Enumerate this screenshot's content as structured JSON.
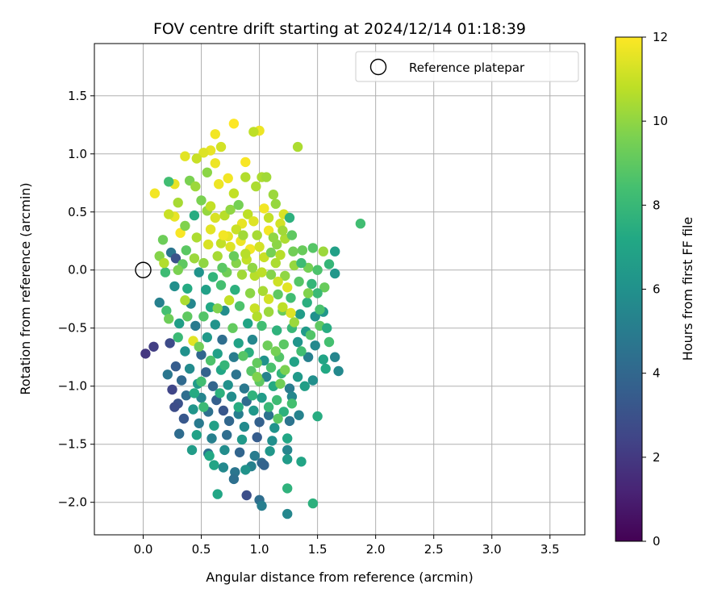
{
  "chart_data": {
    "type": "scatter",
    "title": "FOV centre drift starting at 2024/12/14 01:18:39",
    "xlabel": "Angular distance from reference (arcmin)",
    "ylabel": "Rotation from reference (arcmin)",
    "xlim": [
      -0.42,
      3.8
    ],
    "ylim": [
      -2.28,
      1.95
    ],
    "xticks": [
      0.0,
      0.5,
      1.0,
      1.5,
      2.0,
      2.5,
      3.0,
      3.5
    ],
    "xtick_labels": [
      "0.0",
      "0.5",
      "1.0",
      "1.5",
      "2.0",
      "2.5",
      "3.0",
      "3.5"
    ],
    "yticks": [
      1.5,
      1.0,
      0.5,
      0.0,
      -0.5,
      -1.0,
      -1.5,
      -2.0
    ],
    "ytick_labels": [
      "1.5",
      "1.0",
      "0.5",
      "0.0",
      "−0.5",
      "−1.0",
      "−1.5",
      "−2.0"
    ],
    "grid": true,
    "legend": {
      "placement": "top-right",
      "entries": [
        "Reference platepar"
      ]
    },
    "colorbar": {
      "label": "Hours from first FF file",
      "colormap": "viridis",
      "range": [
        0,
        12
      ],
      "ticks": [
        0,
        2,
        4,
        6,
        8,
        10,
        12
      ],
      "tick_labels": [
        "0",
        "2",
        "4",
        "6",
        "8",
        "10",
        "12"
      ]
    },
    "reference_point": {
      "name": "Reference platepar",
      "x": 0.0,
      "y": 0.0
    },
    "marker_colors": {
      "reference_edge": "#000000",
      "grid": "#b0b0b0"
    },
    "points": [
      [
        0.78,
        1.26,
        12.0
      ],
      [
        0.62,
        1.17,
        11.8
      ],
      [
        1.0,
        1.2,
        11.7
      ],
      [
        0.95,
        1.19,
        10.8
      ],
      [
        1.33,
        1.06,
        10.5
      ],
      [
        0.67,
        1.06,
        11.2
      ],
      [
        0.58,
        1.03,
        11.6
      ],
      [
        0.52,
        1.01,
        11.4
      ],
      [
        0.36,
        0.98,
        11.5
      ],
      [
        0.46,
        0.96,
        11.0
      ],
      [
        0.88,
        0.93,
        11.9
      ],
      [
        0.62,
        0.92,
        11.7
      ],
      [
        1.02,
        0.8,
        10.5
      ],
      [
        0.55,
        0.84,
        9.9
      ],
      [
        0.1,
        0.66,
        11.8
      ],
      [
        0.27,
        0.74,
        11.6
      ],
      [
        0.73,
        0.79,
        11.8
      ],
      [
        0.4,
        0.77,
        9.6
      ],
      [
        0.22,
        0.76,
        8.3
      ],
      [
        0.88,
        0.8,
        10.6
      ],
      [
        1.06,
        0.8,
        10.3
      ],
      [
        0.65,
        0.74,
        11.7
      ],
      [
        0.78,
        0.66,
        10.9
      ],
      [
        0.97,
        0.72,
        10.5
      ],
      [
        1.12,
        0.65,
        10.2
      ],
      [
        0.5,
        0.6,
        9.6
      ],
      [
        0.55,
        0.51,
        10.1
      ],
      [
        0.27,
        0.46,
        11.6
      ],
      [
        0.32,
        0.32,
        11.9
      ],
      [
        0.17,
        0.26,
        9.3
      ],
      [
        0.44,
        0.47,
        7.4
      ],
      [
        0.7,
        0.47,
        10.7
      ],
      [
        0.85,
        0.4,
        11.6
      ],
      [
        1.04,
        0.53,
        11.8
      ],
      [
        1.21,
        0.48,
        11.3
      ],
      [
        1.18,
        0.4,
        11.2
      ],
      [
        1.26,
        0.45,
        7.6
      ],
      [
        1.87,
        0.4,
        8.3
      ],
      [
        1.65,
        0.16,
        6.8
      ],
      [
        1.46,
        0.19,
        8.8
      ],
      [
        1.37,
        0.17,
        9.2
      ],
      [
        1.55,
        0.16,
        10.2
      ],
      [
        1.6,
        0.05,
        7.9
      ],
      [
        1.65,
        -0.03,
        6.3
      ],
      [
        1.08,
        0.34,
        11.8
      ],
      [
        0.67,
        0.23,
        10.9
      ],
      [
        0.73,
        0.29,
        11.6
      ],
      [
        0.84,
        0.25,
        11.7
      ],
      [
        0.92,
        0.18,
        11.8
      ],
      [
        0.98,
        0.3,
        10.4
      ],
      [
        1.15,
        0.22,
        9.9
      ],
      [
        1.22,
        0.27,
        10.5
      ],
      [
        1.29,
        0.16,
        9.4
      ],
      [
        0.37,
        0.17,
        8.9
      ],
      [
        0.24,
        0.15,
        4.7
      ],
      [
        0.28,
        0.1,
        3.0
      ],
      [
        0.52,
        0.06,
        10.0
      ],
      [
        0.64,
        0.12,
        10.4
      ],
      [
        0.8,
        0.06,
        9.8
      ],
      [
        0.89,
        0.09,
        10.9
      ],
      [
        1.04,
        0.11,
        11.0
      ],
      [
        1.14,
        0.06,
        10.5
      ],
      [
        1.3,
        0.04,
        10.1
      ],
      [
        1.42,
        0.02,
        9.5
      ],
      [
        1.5,
        0.0,
        8.6
      ],
      [
        0.34,
        0.05,
        9.0
      ],
      [
        0.3,
        0.0,
        9.6
      ],
      [
        0.19,
        -0.02,
        8.2
      ],
      [
        0.48,
        -0.02,
        6.1
      ],
      [
        0.6,
        -0.06,
        7.8
      ],
      [
        0.72,
        -0.02,
        9.4
      ],
      [
        0.85,
        -0.04,
        10.3
      ],
      [
        0.96,
        -0.05,
        10.7
      ],
      [
        1.1,
        -0.04,
        9.8
      ],
      [
        1.22,
        -0.05,
        10.0
      ],
      [
        1.34,
        -0.1,
        8.8
      ],
      [
        1.45,
        -0.12,
        7.9
      ],
      [
        1.56,
        -0.15,
        9.2
      ],
      [
        1.5,
        -0.2,
        8.1
      ],
      [
        0.27,
        -0.14,
        5.9
      ],
      [
        0.38,
        -0.16,
        7.3
      ],
      [
        0.54,
        -0.17,
        6.8
      ],
      [
        0.67,
        -0.13,
        8.4
      ],
      [
        0.79,
        -0.17,
        7.6
      ],
      [
        0.92,
        -0.2,
        9.9
      ],
      [
        1.03,
        -0.18,
        10.4
      ],
      [
        1.16,
        -0.21,
        9.0
      ],
      [
        1.27,
        -0.24,
        8.3
      ],
      [
        1.41,
        -0.28,
        7.5
      ],
      [
        0.14,
        -0.28,
        5.2
      ],
      [
        0.2,
        -0.35,
        8.4
      ],
      [
        0.41,
        -0.29,
        5.5
      ],
      [
        0.58,
        -0.32,
        7.2
      ],
      [
        0.7,
        -0.35,
        5.8
      ],
      [
        0.83,
        -0.31,
        8.6
      ],
      [
        0.96,
        -0.33,
        11.0
      ],
      [
        1.08,
        -0.36,
        10.2
      ],
      [
        1.2,
        -0.35,
        9.2
      ],
      [
        1.35,
        -0.38,
        6.6
      ],
      [
        1.48,
        -0.4,
        6.0
      ],
      [
        1.55,
        -0.36,
        6.3
      ],
      [
        0.22,
        -0.42,
        9.3
      ],
      [
        0.31,
        -0.46,
        6.7
      ],
      [
        0.45,
        -0.48,
        4.9
      ],
      [
        0.62,
        -0.47,
        6.1
      ],
      [
        0.77,
        -0.5,
        9.1
      ],
      [
        0.9,
        -0.46,
        7.0
      ],
      [
        1.02,
        -0.48,
        8.3
      ],
      [
        1.15,
        -0.52,
        7.7
      ],
      [
        1.28,
        -0.5,
        8.0
      ],
      [
        1.4,
        -0.53,
        6.5
      ],
      [
        1.52,
        -0.48,
        9.0
      ],
      [
        1.58,
        -0.5,
        7.4
      ],
      [
        0.3,
        -0.58,
        8.1
      ],
      [
        0.43,
        -0.61,
        11.5
      ],
      [
        0.55,
        -0.58,
        6.4
      ],
      [
        0.68,
        -0.6,
        4.3
      ],
      [
        0.82,
        -0.63,
        6.9
      ],
      [
        0.94,
        -0.6,
        5.5
      ],
      [
        1.07,
        -0.65,
        9.3
      ],
      [
        1.21,
        -0.64,
        8.9
      ],
      [
        1.33,
        -0.62,
        6.2
      ],
      [
        1.48,
        -0.65,
        5.6
      ],
      [
        1.6,
        -0.62,
        8.4
      ],
      [
        0.23,
        -0.63,
        2.7
      ],
      [
        0.36,
        -0.7,
        6.0
      ],
      [
        0.5,
        -0.73,
        4.0
      ],
      [
        0.64,
        -0.72,
        6.8
      ],
      [
        0.78,
        -0.75,
        5.0
      ],
      [
        0.91,
        -0.71,
        7.5
      ],
      [
        1.04,
        -0.78,
        6.1
      ],
      [
        1.17,
        -0.75,
        8.7
      ],
      [
        1.3,
        -0.79,
        6.9
      ],
      [
        1.42,
        -0.75,
        5.2
      ],
      [
        1.55,
        -0.77,
        7.0
      ],
      [
        1.65,
        -0.75,
        5.4
      ],
      [
        0.02,
        -0.72,
        1.9
      ],
      [
        0.09,
        -0.66,
        2.2
      ],
      [
        0.28,
        -0.83,
        3.5
      ],
      [
        0.4,
        -0.85,
        5.7
      ],
      [
        0.54,
        -0.88,
        3.8
      ],
      [
        0.67,
        -0.86,
        7.1
      ],
      [
        0.8,
        -0.9,
        4.6
      ],
      [
        0.93,
        -0.87,
        8.8
      ],
      [
        1.06,
        -0.92,
        5.3
      ],
      [
        1.19,
        -0.89,
        7.8
      ],
      [
        1.33,
        -0.92,
        6.4
      ],
      [
        1.46,
        -0.95,
        5.9
      ],
      [
        1.57,
        -0.85,
        7.2
      ],
      [
        1.68,
        -0.87,
        5.6
      ],
      [
        0.21,
        -0.9,
        4.7
      ],
      [
        0.33,
        -0.95,
        4.1
      ],
      [
        0.47,
        -0.98,
        6.5
      ],
      [
        0.6,
        -1.0,
        3.9
      ],
      [
        0.73,
        -0.99,
        6.0
      ],
      [
        0.87,
        -1.02,
        4.8
      ],
      [
        1.0,
        -0.96,
        9.0
      ],
      [
        1.12,
        -1.0,
        7.3
      ],
      [
        1.26,
        -1.02,
        5.0
      ],
      [
        1.39,
        -1.0,
        6.7
      ],
      [
        0.25,
        -1.03,
        2.5
      ],
      [
        0.37,
        -1.08,
        4.3
      ],
      [
        0.5,
        -1.1,
        5.4
      ],
      [
        0.63,
        -1.12,
        3.6
      ],
      [
        0.76,
        -1.09,
        5.8
      ],
      [
        0.89,
        -1.13,
        4.2
      ],
      [
        1.02,
        -1.1,
        6.6
      ],
      [
        1.15,
        -1.12,
        8.2
      ],
      [
        1.28,
        -1.09,
        5.5
      ],
      [
        0.3,
        -1.15,
        3.0
      ],
      [
        0.43,
        -1.2,
        6.2
      ],
      [
        0.56,
        -1.22,
        4.4
      ],
      [
        0.69,
        -1.21,
        3.2
      ],
      [
        0.82,
        -1.24,
        5.1
      ],
      [
        0.95,
        -1.21,
        6.3
      ],
      [
        1.08,
        -1.25,
        4.5
      ],
      [
        1.21,
        -1.22,
        7.6
      ],
      [
        1.34,
        -1.25,
        5.3
      ],
      [
        0.27,
        -1.18,
        2.8
      ],
      [
        0.35,
        -1.28,
        3.3
      ],
      [
        0.48,
        -1.32,
        4.9
      ],
      [
        0.61,
        -1.34,
        6.8
      ],
      [
        0.74,
        -1.3,
        4.0
      ],
      [
        0.87,
        -1.35,
        5.7
      ],
      [
        1.0,
        -1.31,
        3.7
      ],
      [
        1.13,
        -1.36,
        6.1
      ],
      [
        1.26,
        -1.3,
        4.6
      ],
      [
        1.5,
        -1.26,
        7.4
      ],
      [
        0.31,
        -1.41,
        4.2
      ],
      [
        0.46,
        -1.42,
        6.9
      ],
      [
        0.59,
        -1.45,
        5.2
      ],
      [
        0.72,
        -1.42,
        4.3
      ],
      [
        0.85,
        -1.46,
        6.4
      ],
      [
        0.98,
        -1.44,
        3.5
      ],
      [
        1.11,
        -1.47,
        5.9
      ],
      [
        1.24,
        -1.45,
        7.1
      ],
      [
        0.42,
        -1.55,
        6.6
      ],
      [
        0.56,
        -1.58,
        4.5
      ],
      [
        0.7,
        -1.55,
        5.8
      ],
      [
        0.83,
        -1.57,
        3.9
      ],
      [
        0.96,
        -1.6,
        5.0
      ],
      [
        1.09,
        -1.56,
        6.3
      ],
      [
        1.24,
        -1.55,
        5.4
      ],
      [
        0.57,
        -1.6,
        7.2
      ],
      [
        0.61,
        -1.68,
        7.0
      ],
      [
        0.69,
        -1.7,
        5.6
      ],
      [
        0.79,
        -1.74,
        4.7
      ],
      [
        0.93,
        -1.69,
        5.2
      ],
      [
        1.02,
        -1.66,
        4.1
      ],
      [
        1.24,
        -1.63,
        6.5
      ],
      [
        1.36,
        -1.65,
        7.0
      ],
      [
        0.78,
        -1.8,
        4.4
      ],
      [
        0.88,
        -1.72,
        6.1
      ],
      [
        1.04,
        -1.68,
        3.8
      ],
      [
        1.24,
        -1.88,
        7.7
      ],
      [
        0.64,
        -1.93,
        7.1
      ],
      [
        0.89,
        -1.94,
        2.9
      ],
      [
        1.0,
        -1.98,
        4.3
      ],
      [
        1.02,
        -2.03,
        5.1
      ],
      [
        1.46,
        -2.01,
        7.6
      ],
      [
        1.24,
        -2.1,
        5.5
      ],
      [
        0.36,
        0.38,
        9.7
      ],
      [
        0.46,
        0.28,
        10.5
      ],
      [
        0.58,
        0.35,
        11.5
      ],
      [
        0.62,
        0.45,
        11.3
      ],
      [
        0.75,
        0.52,
        10.0
      ],
      [
        0.82,
        0.56,
        9.5
      ],
      [
        0.9,
        0.48,
        10.8
      ],
      [
        0.95,
        0.42,
        11.4
      ],
      [
        1.08,
        0.45,
        10.9
      ],
      [
        1.14,
        0.57,
        10.1
      ],
      [
        0.8,
        0.35,
        11.0
      ],
      [
        0.86,
        0.3,
        10.3
      ],
      [
        0.69,
        0.3,
        11.8
      ],
      [
        0.75,
        0.2,
        11.4
      ],
      [
        1.0,
        0.2,
        11.2
      ],
      [
        1.1,
        0.15,
        9.5
      ],
      [
        1.18,
        0.13,
        10.7
      ],
      [
        0.58,
        0.55,
        10.9
      ],
      [
        0.45,
        0.72,
        10.2
      ],
      [
        0.3,
        0.58,
        10.4
      ],
      [
        0.22,
        0.48,
        11.0
      ],
      [
        0.14,
        0.12,
        9.8
      ],
      [
        0.18,
        0.06,
        10.6
      ],
      [
        0.44,
        0.1,
        10.2
      ],
      [
        0.56,
        0.22,
        11.3
      ],
      [
        0.94,
        0.02,
        10.0
      ],
      [
        1.02,
        -0.02,
        10.8
      ],
      [
        1.16,
        -0.1,
        11.1
      ],
      [
        1.24,
        -0.15,
        11.5
      ],
      [
        1.08,
        -0.25,
        11.2
      ],
      [
        1.2,
        -0.32,
        10.8
      ],
      [
        1.27,
        -0.37,
        11.4
      ],
      [
        1.3,
        -0.45,
        10.2
      ],
      [
        0.98,
        -0.4,
        10.6
      ],
      [
        0.74,
        -0.26,
        10.9
      ],
      [
        0.64,
        -0.33,
        9.7
      ],
      [
        0.52,
        -0.4,
        8.7
      ],
      [
        0.36,
        -0.26,
        10.5
      ],
      [
        0.38,
        -0.4,
        9.0
      ],
      [
        0.48,
        -0.66,
        9.4
      ],
      [
        0.58,
        -0.78,
        8.6
      ],
      [
        0.7,
        -0.82,
        7.9
      ],
      [
        0.86,
        -0.74,
        8.8
      ],
      [
        0.98,
        -0.8,
        9.1
      ],
      [
        1.1,
        -0.84,
        8.5
      ],
      [
        1.22,
        -0.86,
        9.6
      ],
      [
        1.18,
        -0.98,
        9.4
      ],
      [
        1.28,
        -1.15,
        8.4
      ],
      [
        1.08,
        -1.18,
        8.0
      ],
      [
        0.94,
        -1.08,
        7.7
      ],
      [
        1.16,
        -1.28,
        8.9
      ],
      [
        0.82,
        -1.18,
        7.4
      ],
      [
        0.66,
        -1.06,
        7.6
      ],
      [
        0.52,
        -1.18,
        8.1
      ],
      [
        0.44,
        -1.06,
        7.3
      ],
      [
        0.5,
        -0.96,
        8.3
      ],
      [
        0.98,
        -0.92,
        9.7
      ],
      [
        1.14,
        -0.7,
        9.5
      ],
      [
        1.36,
        -0.7,
        8.3
      ],
      [
        1.44,
        -0.56,
        8.7
      ],
      [
        1.52,
        -0.34,
        8.5
      ],
      [
        1.42,
        -0.2,
        9.7
      ],
      [
        1.36,
        0.06,
        8.2
      ],
      [
        1.28,
        0.3,
        9.0
      ],
      [
        1.2,
        0.34,
        10.3
      ],
      [
        1.12,
        0.28,
        10.0
      ],
      [
        0.88,
        0.14,
        10.7
      ],
      [
        0.78,
        0.12,
        9.2
      ],
      [
        0.68,
        0.02,
        8.9
      ]
    ]
  }
}
